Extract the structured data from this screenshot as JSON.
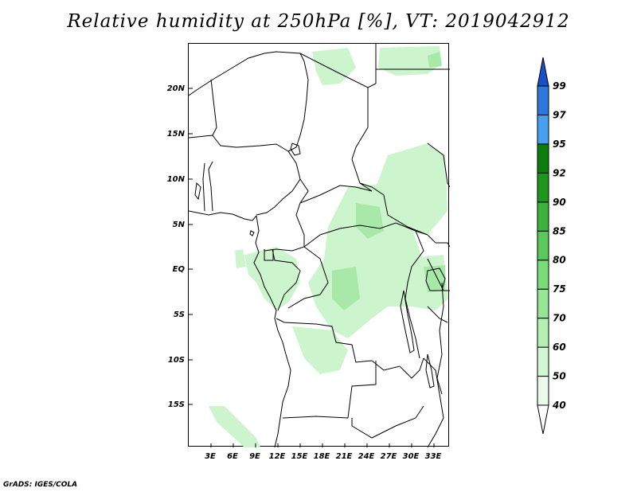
{
  "title": "Relative humidity at 250hPa [%], VT: 2019042912",
  "footer": "GrADS: IGES/COLA",
  "map": {
    "lat_labels": [
      "20N",
      "15N",
      "10N",
      "5N",
      "EQ",
      "5S",
      "10S",
      "15S"
    ],
    "lon_labels": [
      "3E",
      "6E",
      "9E",
      "12E",
      "15E",
      "18E",
      "21E",
      "24E",
      "27E",
      "30E",
      "33E"
    ]
  },
  "colorbar": {
    "levels": [
      "40",
      "50",
      "60",
      "70",
      "75",
      "80",
      "85",
      "90",
      "92",
      "95",
      "97",
      "99"
    ],
    "colors": [
      "#ffffff",
      "#eafaea",
      "#d2f5d2",
      "#b4f0b4",
      "#96e696",
      "#78dc78",
      "#5ac85a",
      "#3cb43c",
      "#1e961e",
      "#0a7d0a",
      "#46a0f0",
      "#2d78dc",
      "#1450c8"
    ]
  },
  "colors": {
    "rh_light": "#cdf5cd",
    "rh_medium": "#a8e8a8",
    "land_border": "#000000",
    "background": "#ffffff"
  }
}
